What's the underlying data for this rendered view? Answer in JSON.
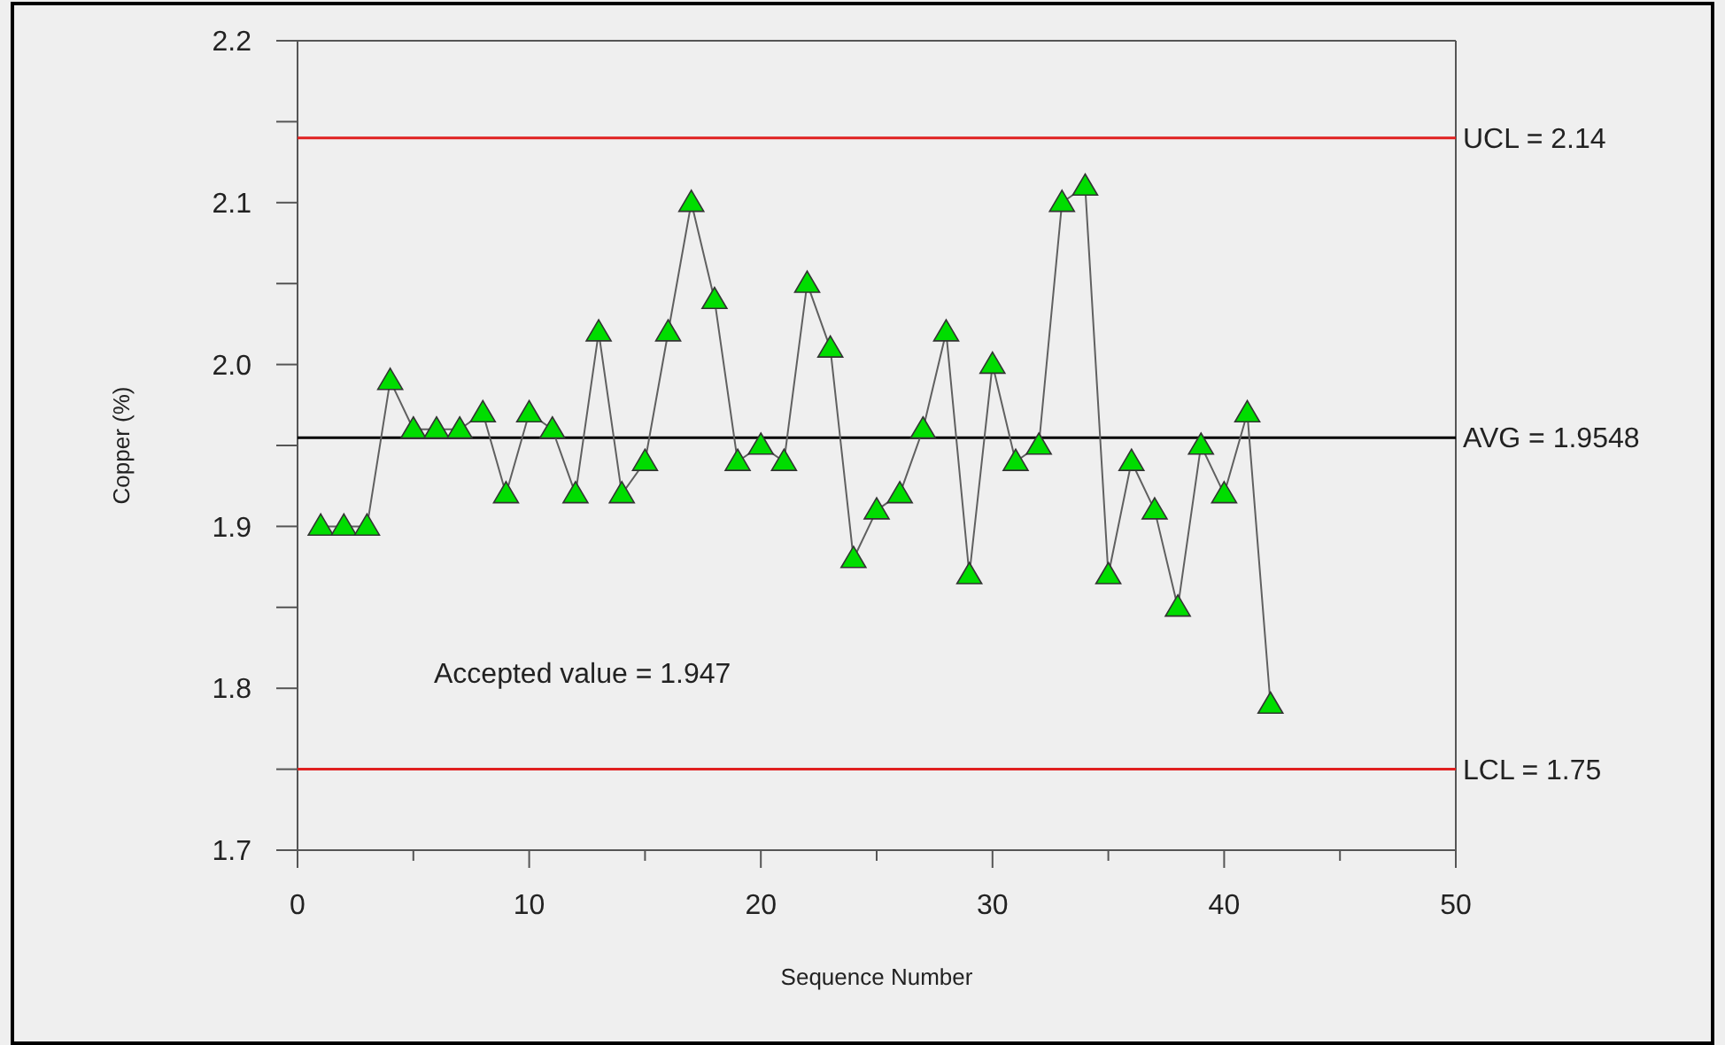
{
  "chart_data": {
    "type": "line",
    "xlabel": "Sequence Number",
    "ylabel": "Copper (%)",
    "x": [
      1,
      2,
      3,
      4,
      5,
      6,
      7,
      8,
      9,
      10,
      11,
      12,
      13,
      14,
      15,
      16,
      17,
      18,
      19,
      20,
      21,
      22,
      23,
      24,
      25,
      26,
      27,
      28,
      29,
      30,
      31,
      32,
      33,
      34,
      35,
      36,
      37,
      38,
      39,
      40,
      41,
      42
    ],
    "series": [
      {
        "color": "#00dd00",
        "values": [
          1.9,
          1.9,
          1.9,
          1.99,
          1.96,
          1.96,
          1.96,
          1.97,
          1.92,
          1.97,
          1.96,
          1.92,
          2.02,
          1.92,
          1.94,
          2.02,
          2.1,
          2.04,
          1.94,
          1.95,
          1.94,
          2.05,
          2.01,
          1.88,
          1.91,
          1.92,
          1.96,
          2.02,
          1.87,
          2.0,
          1.94,
          1.95,
          2.1,
          2.11,
          1.87,
          1.94,
          1.91,
          1.85,
          1.95,
          1.92,
          1.97,
          1.79
        ]
      }
    ],
    "marker": "triangle",
    "line_style": "solid",
    "grid": false,
    "xlim": [
      0,
      50
    ],
    "ylim": [
      1.7,
      2.2
    ],
    "xticks": [
      0,
      {
        "value": 5,
        "label": null
      },
      10,
      {
        "value": 15,
        "label": null
      },
      20,
      {
        "value": 25,
        "label": null
      },
      30,
      {
        "value": 35,
        "label": null
      },
      40,
      {
        "value": 45,
        "label": null
      },
      50
    ],
    "yticks": [
      1.7,
      {
        "value": 1.75,
        "label": null
      },
      1.8,
      {
        "value": 1.85,
        "label": null
      },
      1.9,
      {
        "value": 1.95,
        "label": null
      },
      {
        "value": 2,
        "label": "2.0"
      },
      {
        "value": 2.05,
        "label": null
      },
      2.1,
      {
        "value": 2.15,
        "label": null
      },
      2.2
    ],
    "ref_lines": [
      {
        "axis": "y",
        "value": 2.14,
        "label": "UCL = 2.14",
        "color": "#e02020"
      },
      {
        "axis": "y",
        "value": 1.9548,
        "label": "AVG = 1.9548",
        "color": "#000000"
      },
      {
        "axis": "y",
        "value": 1.75,
        "label": "LCL = 1.75",
        "color": "#e02020"
      }
    ],
    "annotations": [
      "Accepted value = 1.947"
    ]
  }
}
